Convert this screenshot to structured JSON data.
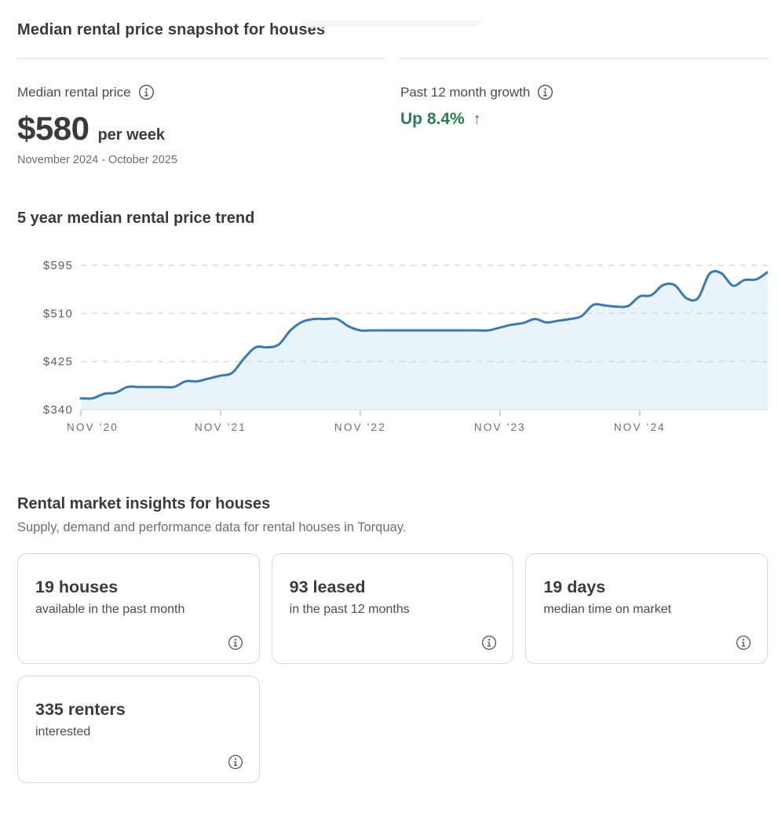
{
  "snapshot": {
    "title": "Median rental price snapshot for houses",
    "median_price": {
      "label": "Median rental price",
      "info_icon": "info-icon",
      "value": "$580",
      "unit": "per week",
      "period": "November 2024 - October 2025"
    },
    "growth": {
      "label": "Past 12 month growth",
      "info_icon": "info-icon",
      "value": "Up 8.4%",
      "arrow": "↑"
    }
  },
  "trend": {
    "title": "5 year median rental price trend"
  },
  "insights": {
    "title": "Rental market insights for houses",
    "subtitle": "Supply, demand and performance data for rental houses in Torquay.",
    "cards": [
      {
        "value": "19 houses",
        "description": "available in the past month",
        "info_icon": "info-icon"
      },
      {
        "value": "93 leased",
        "description": "in the past 12 months",
        "info_icon": "info-icon"
      },
      {
        "value": "19 days",
        "description": "median time on market",
        "info_icon": "info-icon"
      },
      {
        "value": "335 renters",
        "description": "interested",
        "info_icon": "info-icon"
      }
    ]
  },
  "colors": {
    "growth_green": "#2a7d52",
    "chart_line_blue": "#3b7ab0",
    "chart_fill_blue": "#e9f3fa",
    "heading_text": "#3a3a3a",
    "muted_text": "#6d6d6d",
    "divider": "#d9d9d9",
    "card_border": "#d8d8d8"
  },
  "chart_data": {
    "type": "area",
    "title": "5 year median rental price trend",
    "x_interval": "monthly",
    "x_start": "NOV 2020",
    "x_end": "OCT 2025",
    "values": [
      360,
      360,
      368,
      370,
      380,
      380,
      380,
      380,
      380,
      390,
      390,
      395,
      400,
      405,
      430,
      450,
      450,
      455,
      480,
      495,
      500,
      500,
      500,
      487,
      480,
      480,
      480,
      480,
      480,
      480,
      480,
      480,
      480,
      480,
      480,
      480,
      485,
      490,
      493,
      500,
      494,
      497,
      500,
      505,
      525,
      524,
      522,
      523,
      540,
      542,
      560,
      560,
      537,
      537,
      580,
      581,
      559,
      569,
      570,
      583
    ],
    "ylim": [
      340,
      595
    ],
    "yticks": [
      340,
      425,
      510,
      595
    ],
    "ytick_labels": [
      "$340",
      "$425",
      "$510",
      "$595"
    ],
    "ytick_prefix": "$",
    "xticks_month_index": [
      0,
      12,
      24,
      36,
      48
    ],
    "xtick_labels": [
      "NOV '20",
      "NOV '21",
      "NOV '22",
      "NOV '23",
      "NOV '24"
    ],
    "grid": "horizontal-dashed",
    "legend": "none",
    "line_color": "#3b7ab0",
    "fill_color": "#e9f3fa"
  }
}
